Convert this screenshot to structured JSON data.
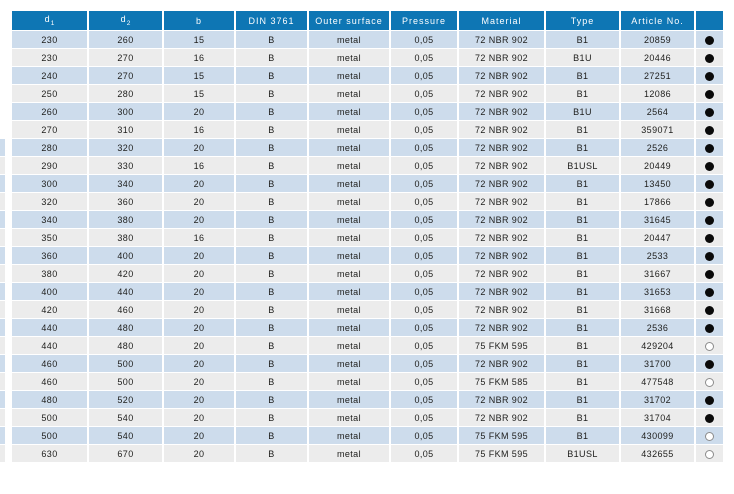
{
  "table": {
    "columns": [
      {
        "id": "d1",
        "label": "d",
        "sub": "1"
      },
      {
        "id": "d2",
        "label": "d",
        "sub": "2"
      },
      {
        "id": "b",
        "label": "b"
      },
      {
        "id": "din-3761",
        "label": "DIN 3761"
      },
      {
        "id": "outer-surface",
        "label": "Outer surface"
      },
      {
        "id": "pressure",
        "label": "Pressure"
      },
      {
        "id": "material",
        "label": "Material"
      },
      {
        "id": "type",
        "label": "Type"
      },
      {
        "id": "article-no",
        "label": "Article No."
      },
      {
        "id": "availability",
        "label": ""
      }
    ],
    "rows": [
      [
        "230",
        "260",
        "15",
        "B",
        "metal",
        "0,05",
        "72 NBR 902",
        "B1",
        "20859",
        "filled"
      ],
      [
        "230",
        "270",
        "16",
        "B",
        "metal",
        "0,05",
        "72 NBR 902",
        "B1U",
        "20446",
        "filled"
      ],
      [
        "240",
        "270",
        "15",
        "B",
        "metal",
        "0,05",
        "72 NBR 902",
        "B1",
        "27251",
        "filled"
      ],
      [
        "250",
        "280",
        "15",
        "B",
        "metal",
        "0,05",
        "72 NBR 902",
        "B1",
        "12086",
        "filled"
      ],
      [
        "260",
        "300",
        "20",
        "B",
        "metal",
        "0,05",
        "72 NBR 902",
        "B1U",
        "2564",
        "filled"
      ],
      [
        "270",
        "310",
        "16",
        "B",
        "metal",
        "0,05",
        "72 NBR 902",
        "B1",
        "359071",
        "filled"
      ],
      [
        "280",
        "320",
        "20",
        "B",
        "metal",
        "0,05",
        "72 NBR 902",
        "B1",
        "2526",
        "filled"
      ],
      [
        "290",
        "330",
        "16",
        "B",
        "metal",
        "0,05",
        "72 NBR 902",
        "B1USL",
        "20449",
        "filled"
      ],
      [
        "300",
        "340",
        "20",
        "B",
        "metal",
        "0,05",
        "72 NBR 902",
        "B1",
        "13450",
        "filled"
      ],
      [
        "320",
        "360",
        "20",
        "B",
        "metal",
        "0,05",
        "72 NBR 902",
        "B1",
        "17866",
        "filled"
      ],
      [
        "340",
        "380",
        "20",
        "B",
        "metal",
        "0,05",
        "72 NBR 902",
        "B1",
        "31645",
        "filled"
      ],
      [
        "350",
        "380",
        "16",
        "B",
        "metal",
        "0,05",
        "72 NBR 902",
        "B1",
        "20447",
        "filled"
      ],
      [
        "360",
        "400",
        "20",
        "B",
        "metal",
        "0,05",
        "72 NBR 902",
        "B1",
        "2533",
        "filled"
      ],
      [
        "380",
        "420",
        "20",
        "B",
        "metal",
        "0,05",
        "72 NBR 902",
        "B1",
        "31667",
        "filled"
      ],
      [
        "400",
        "440",
        "20",
        "B",
        "metal",
        "0,05",
        "72 NBR 902",
        "B1",
        "31653",
        "filled"
      ],
      [
        "420",
        "460",
        "20",
        "B",
        "metal",
        "0,05",
        "72 NBR 902",
        "B1",
        "31668",
        "filled"
      ],
      [
        "440",
        "480",
        "20",
        "B",
        "metal",
        "0,05",
        "72 NBR 902",
        "B1",
        "2536",
        "filled"
      ],
      [
        "440",
        "480",
        "20",
        "B",
        "metal",
        "0,05",
        "75 FKM 595",
        "B1",
        "429204",
        "hollow"
      ],
      [
        "460",
        "500",
        "20",
        "B",
        "metal",
        "0,05",
        "72 NBR 902",
        "B1",
        "31700",
        "filled"
      ],
      [
        "460",
        "500",
        "20",
        "B",
        "metal",
        "0,05",
        "75 FKM 585",
        "B1",
        "477548",
        "hollow"
      ],
      [
        "480",
        "520",
        "20",
        "B",
        "metal",
        "0,05",
        "72 NBR 902",
        "B1",
        "31702",
        "filled"
      ],
      [
        "500",
        "540",
        "20",
        "B",
        "metal",
        "0,05",
        "72 NBR 902",
        "B1",
        "31704",
        "filled"
      ],
      [
        "500",
        "540",
        "20",
        "B",
        "metal",
        "0,05",
        "75 FKM 595",
        "B1",
        "430099",
        "hollow"
      ],
      [
        "630",
        "670",
        "20",
        "B",
        "metal",
        "0,05",
        "75 FKM 595",
        "B1USL",
        "432655",
        "hollow"
      ]
    ],
    "colors": {
      "header_bg": "#0e76b4",
      "header_text": "#ffffff",
      "row_odd_bg": "#cddcec",
      "row_even_bg": "#ececec",
      "cell_text": "#1d1d1b",
      "dot_filled": "#0a0a0a",
      "dot_hollow_border": "#8c8c8c"
    },
    "left_edge_strip": {
      "first_row_index": 6,
      "last_row_index": 23
    }
  }
}
